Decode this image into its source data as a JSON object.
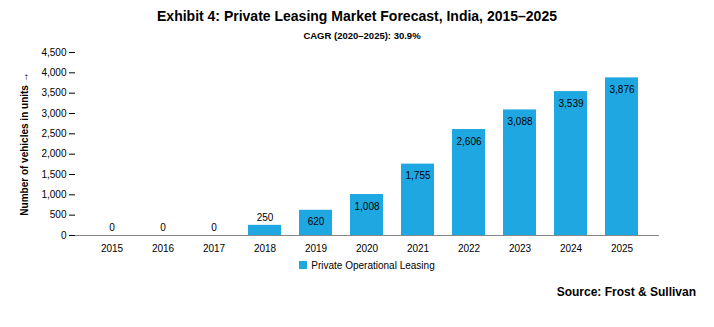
{
  "chart_data": {
    "type": "bar",
    "title": "Exhibit 4: Private Leasing Market Forecast, India, 2015–2025",
    "subtitle": "CAGR (2020–2025): 30.9%",
    "y_label": "Number of vehicles in units",
    "source": "Source: Frost & Sullivan",
    "categories": [
      "2015",
      "2016",
      "2017",
      "2018",
      "2019",
      "2020",
      "2021",
      "2022",
      "2023",
      "2024",
      "2025"
    ],
    "series": [
      {
        "name": "Private Operational Leasing",
        "color": "#1fa7e1",
        "values": [
          0,
          0,
          0,
          250,
          620,
          1008,
          1755,
          2606,
          3088,
          3539,
          3876
        ],
        "value_labels": [
          "0",
          "0",
          "0",
          "250",
          "620",
          "1,008",
          "1,755",
          "2,606",
          "3,088",
          "3,539",
          "3,876"
        ]
      }
    ],
    "ylim": [
      0,
      4500
    ],
    "yticks": [
      0,
      500,
      {
        "value": 1000,
        "label": "1,000"
      },
      {
        "value": 1500,
        "label": "1,500"
      },
      {
        "value": 2000,
        "label": "2,000"
      },
      {
        "value": 2500,
        "label": "2,500"
      },
      {
        "value": 3000,
        "label": "3,000"
      },
      {
        "value": 3500,
        "label": "3,500"
      },
      {
        "value": 4000,
        "label": "4,000"
      },
      {
        "value": 4500,
        "label": "4,500"
      }
    ],
    "grid": false,
    "data_labels": true,
    "legend": "bottom"
  }
}
